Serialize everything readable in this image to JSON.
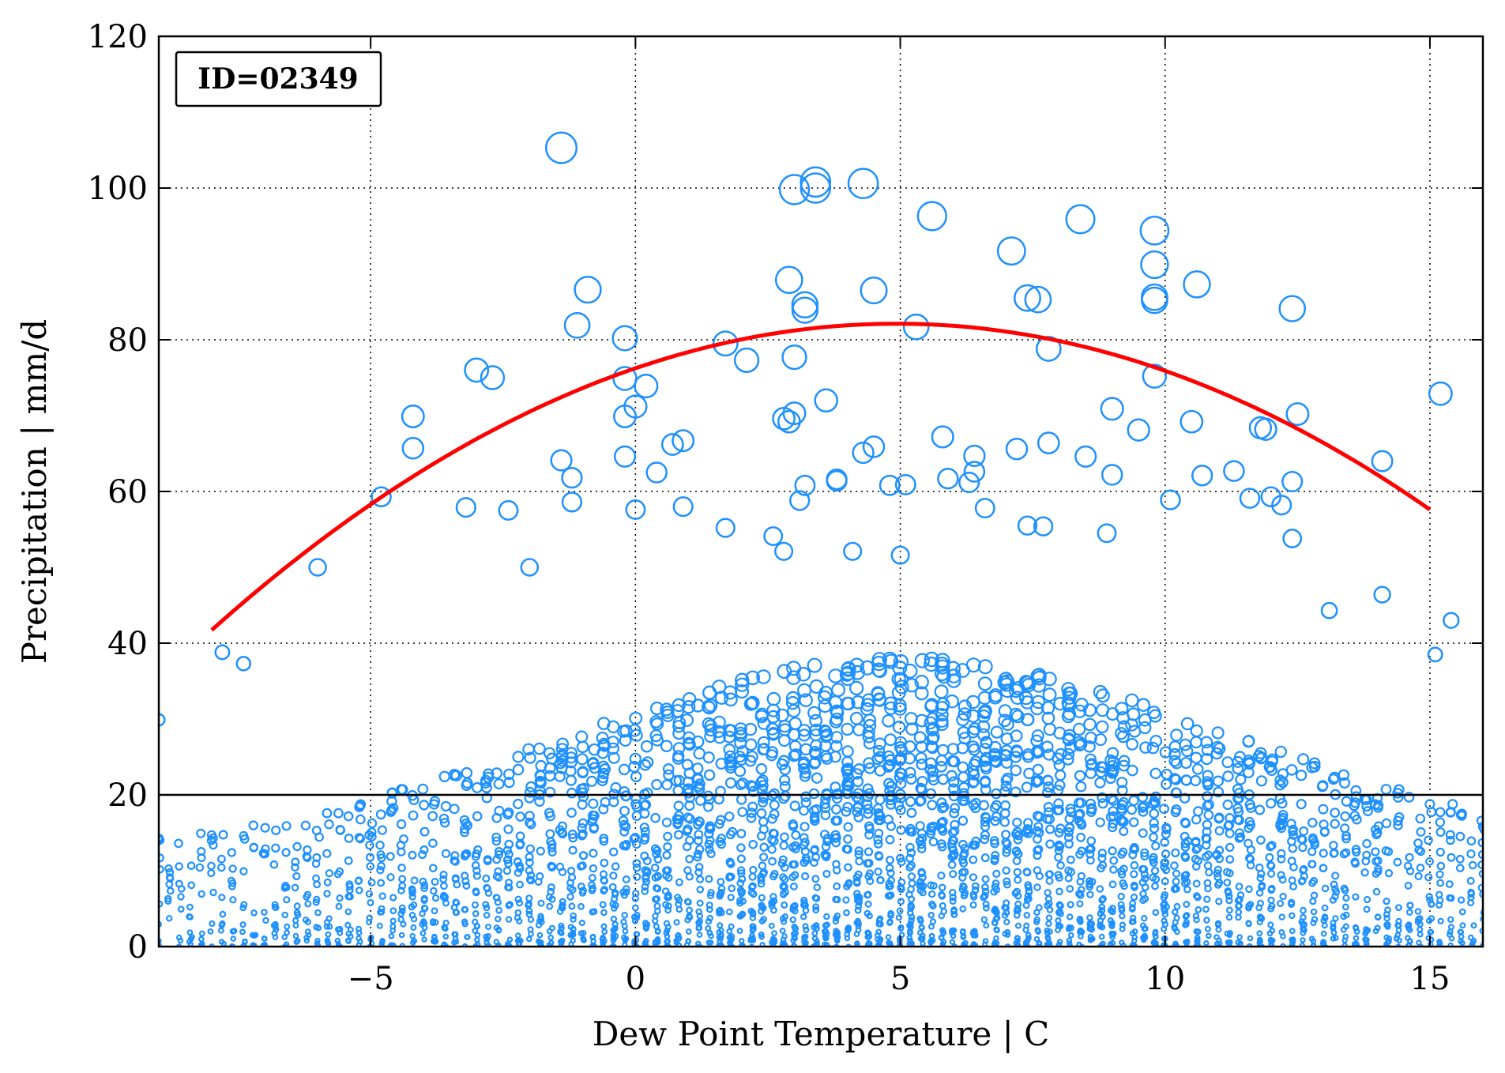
{
  "chart_data": {
    "type": "scatter",
    "xlabel": "Dew Point Temperature | C",
    "ylabel": "Precipitation | mm/d",
    "annotation": "ID=02349",
    "xlim": [
      -9,
      16
    ],
    "ylim": [
      0,
      120
    ],
    "xticks": [
      -5,
      0,
      5,
      10,
      15
    ],
    "xtick_labels": [
      "−5",
      "0",
      "5",
      "10",
      "15"
    ],
    "yticks": [
      0,
      20,
      40,
      60,
      80,
      100,
      120
    ],
    "ytick_labels": [
      "0",
      "20",
      "40",
      "60",
      "80",
      "100",
      "120"
    ],
    "grid": true,
    "grid_style": "dotted",
    "marker": "open circle, size proportional to precipitation",
    "colors": {
      "points": "#1e90ff",
      "fit_curve": "#ff0000",
      "threshold_line": "#000000"
    },
    "threshold": {
      "y": 20
    },
    "fit_curve": {
      "type": "quadratic",
      "x": [
        -8,
        -6,
        -4,
        -2,
        0,
        2,
        4,
        5,
        6,
        8,
        10,
        12,
        14,
        15
      ],
      "y": [
        41.5,
        53.0,
        63.0,
        71.0,
        76.6,
        80.2,
        81.7,
        81.9,
        81.6,
        79.8,
        75.9,
        69.6,
        62.3,
        58.0
      ]
    },
    "highlight_points": [
      {
        "x": -1.4,
        "y": 105.3
      },
      {
        "x": 3.0,
        "y": 99.8
      },
      {
        "x": 3.4,
        "y": 100.8
      },
      {
        "x": 3.4,
        "y": 100.0
      },
      {
        "x": 4.3,
        "y": 100.6
      },
      {
        "x": 5.6,
        "y": 96.3
      },
      {
        "x": 8.4,
        "y": 95.9
      },
      {
        "x": 9.8,
        "y": 94.4
      },
      {
        "x": 7.1,
        "y": 91.7
      },
      {
        "x": 9.8,
        "y": 89.9
      },
      {
        "x": 2.9,
        "y": 87.9
      },
      {
        "x": -0.9,
        "y": 86.6
      },
      {
        "x": 4.5,
        "y": 86.5
      },
      {
        "x": 10.6,
        "y": 87.3
      },
      {
        "x": 7.4,
        "y": 85.5
      },
      {
        "x": 7.6,
        "y": 85.3
      },
      {
        "x": 9.8,
        "y": 85.6
      },
      {
        "x": 9.8,
        "y": 85.2
      },
      {
        "x": 3.2,
        "y": 84.6
      },
      {
        "x": 3.2,
        "y": 83.9
      },
      {
        "x": 12.4,
        "y": 84.1
      },
      {
        "x": -1.1,
        "y": 81.9
      },
      {
        "x": 5.3,
        "y": 81.7
      },
      {
        "x": -0.2,
        "y": 80.2
      },
      {
        "x": 1.7,
        "y": 79.5
      },
      {
        "x": 7.8,
        "y": 78.8
      },
      {
        "x": 3.0,
        "y": 77.7
      },
      {
        "x": 2.1,
        "y": 77.3
      },
      {
        "x": -3.0,
        "y": 76.0
      },
      {
        "x": -2.7,
        "y": 75.0
      },
      {
        "x": 9.8,
        "y": 75.2
      },
      {
        "x": -0.2,
        "y": 74.9
      },
      {
        "x": 0.2,
        "y": 73.9
      },
      {
        "x": 15.2,
        "y": 72.9
      },
      {
        "x": 3.6,
        "y": 72.0
      },
      {
        "x": 0.0,
        "y": 71.2
      },
      {
        "x": 9.0,
        "y": 70.9
      },
      {
        "x": -4.2,
        "y": 69.9
      },
      {
        "x": -0.2,
        "y": 69.9
      },
      {
        "x": 12.5,
        "y": 70.2
      },
      {
        "x": 2.8,
        "y": 69.6
      },
      {
        "x": 3.0,
        "y": 70.3
      },
      {
        "x": 2.9,
        "y": 69.2
      },
      {
        "x": 10.5,
        "y": 69.2
      },
      {
        "x": 11.8,
        "y": 68.4
      },
      {
        "x": 11.9,
        "y": 68.2
      },
      {
        "x": 5.8,
        "y": 67.2
      },
      {
        "x": 0.7,
        "y": 66.2
      },
      {
        "x": 0.9,
        "y": 66.7
      },
      {
        "x": 7.8,
        "y": 66.4
      },
      {
        "x": -4.2,
        "y": 65.7
      },
      {
        "x": 7.2,
        "y": 65.6
      },
      {
        "x": 4.5,
        "y": 65.9
      },
      {
        "x": 4.3,
        "y": 65.1
      },
      {
        "x": 9.5,
        "y": 68.1
      },
      {
        "x": 6.4,
        "y": 64.7
      },
      {
        "x": 8.5,
        "y": 64.6
      },
      {
        "x": -0.2,
        "y": 64.6
      },
      {
        "x": -1.4,
        "y": 64.1
      },
      {
        "x": 14.1,
        "y": 64.0
      },
      {
        "x": 6.4,
        "y": 62.6
      },
      {
        "x": 0.4,
        "y": 62.5
      },
      {
        "x": 11.3,
        "y": 62.7
      },
      {
        "x": 10.7,
        "y": 62.1
      },
      {
        "x": 9.0,
        "y": 62.2
      },
      {
        "x": 5.9,
        "y": 61.7
      },
      {
        "x": 3.8,
        "y": 61.6
      },
      {
        "x": 3.8,
        "y": 61.4
      },
      {
        "x": 6.3,
        "y": 61.2
      },
      {
        "x": -1.2,
        "y": 61.8
      },
      {
        "x": 12.4,
        "y": 61.3
      },
      {
        "x": 5.1,
        "y": 60.9
      },
      {
        "x": 4.8,
        "y": 60.8
      },
      {
        "x": 3.2,
        "y": 60.8
      },
      {
        "x": -4.8,
        "y": 59.3
      },
      {
        "x": 3.1,
        "y": 58.8
      },
      {
        "x": 10.1,
        "y": 58.9
      },
      {
        "x": 11.6,
        "y": 59.1
      },
      {
        "x": 12.0,
        "y": 59.3
      },
      {
        "x": 6.6,
        "y": 57.8
      },
      {
        "x": 12.2,
        "y": 58.2
      },
      {
        "x": 0.9,
        "y": 58.0
      },
      {
        "x": -3.2,
        "y": 57.9
      },
      {
        "x": -2.4,
        "y": 57.5
      },
      {
        "x": -1.2,
        "y": 58.6
      },
      {
        "x": 0.0,
        "y": 57.6
      },
      {
        "x": 2.6,
        "y": 54.1
      },
      {
        "x": 7.4,
        "y": 55.5
      },
      {
        "x": 7.7,
        "y": 55.4
      },
      {
        "x": 8.9,
        "y": 54.5
      },
      {
        "x": 1.7,
        "y": 55.2
      },
      {
        "x": 2.8,
        "y": 52.1
      },
      {
        "x": 4.1,
        "y": 52.1
      },
      {
        "x": 5.0,
        "y": 51.6
      },
      {
        "x": -6.0,
        "y": 50.0
      },
      {
        "x": -2.0,
        "y": 50.0
      },
      {
        "x": 12.4,
        "y": 53.8
      },
      {
        "x": 13.1,
        "y": 44.3
      },
      {
        "x": 15.4,
        "y": 43.0
      },
      {
        "x": 14.1,
        "y": 46.4
      },
      {
        "x": -7.8,
        "y": 38.8
      },
      {
        "x": -7.4,
        "y": 37.3
      },
      {
        "x": 15.1,
        "y": 38.5
      },
      {
        "x": -9.0,
        "y": 29.9
      }
    ],
    "dense_region": {
      "description": "Most observations fall below 20 mm/d across the full dew point range"
    }
  }
}
